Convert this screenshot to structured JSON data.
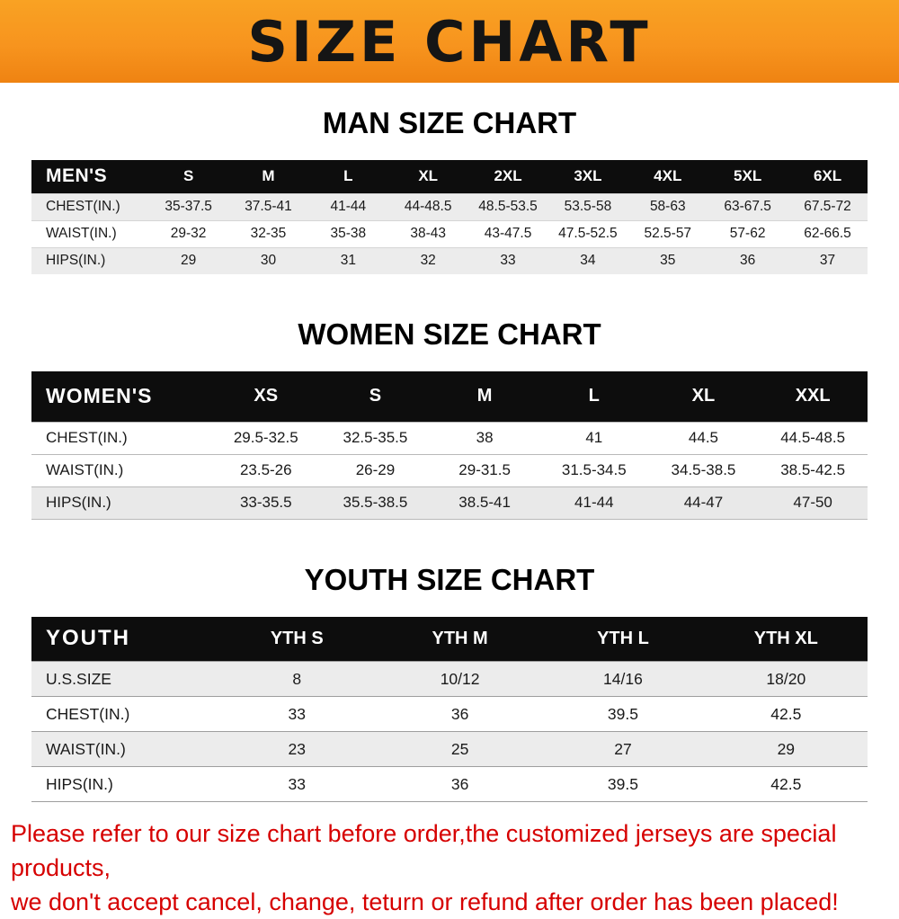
{
  "banner": {
    "title": "SIZE CHART",
    "bg_color": "#f7941e",
    "text_color": "#151515"
  },
  "sections": [
    {
      "heading": "MAN SIZE CHART",
      "table": {
        "header": [
          "MEN'S",
          "S",
          "M",
          "L",
          "XL",
          "2XL",
          "3XL",
          "4XL",
          "5XL",
          "6XL"
        ],
        "rows": [
          [
            "CHEST(IN.)",
            "35-37.5",
            "37.5-41",
            "41-44",
            "44-48.5",
            "48.5-53.5",
            "53.5-58",
            "58-63",
            "63-67.5",
            "67.5-72"
          ],
          [
            "WAIST(IN.)",
            "29-32",
            "32-35",
            "35-38",
            "38-43",
            "43-47.5",
            "47.5-52.5",
            "52.5-57",
            "57-62",
            "62-66.5"
          ],
          [
            "HIPS(IN.)",
            "29",
            "30",
            "31",
            "32",
            "33",
            "34",
            "35",
            "36",
            "37"
          ]
        ]
      }
    },
    {
      "heading": "WOMEN SIZE CHART",
      "table": {
        "header": [
          "WOMEN'S",
          "XS",
          "S",
          "M",
          "L",
          "XL",
          "XXL"
        ],
        "rows": [
          [
            "CHEST(IN.)",
            "29.5-32.5",
            "32.5-35.5",
            "38",
            "41",
            "44.5",
            "44.5-48.5"
          ],
          [
            "WAIST(IN.)",
            "23.5-26",
            "26-29",
            "29-31.5",
            "31.5-34.5",
            "34.5-38.5",
            "38.5-42.5"
          ],
          [
            "HIPS(IN.)",
            "33-35.5",
            "35.5-38.5",
            "38.5-41",
            "41-44",
            "44-47",
            "47-50"
          ]
        ]
      }
    },
    {
      "heading": "YOUTH SIZE CHART",
      "table": {
        "header": [
          "YOUTH",
          "YTH S",
          "YTH M",
          "YTH L",
          "YTH XL"
        ],
        "rows": [
          [
            "U.S.SIZE",
            "8",
            "10/12",
            "14/16",
            "18/20"
          ],
          [
            "CHEST(IN.)",
            "33",
            "36",
            "39.5",
            "42.5"
          ],
          [
            "WAIST(IN.)",
            "23",
            "25",
            "27",
            "29"
          ],
          [
            "HIPS(IN.)",
            "33",
            "36",
            "39.5",
            "42.5"
          ]
        ]
      }
    }
  ],
  "footer": {
    "lines": [
      "Please refer to our size chart before order,the customized jerseys are special products,",
      "we don't accept cancel, change, teturn or refund after order has been placed!"
    ],
    "text_color": "#d60000"
  }
}
